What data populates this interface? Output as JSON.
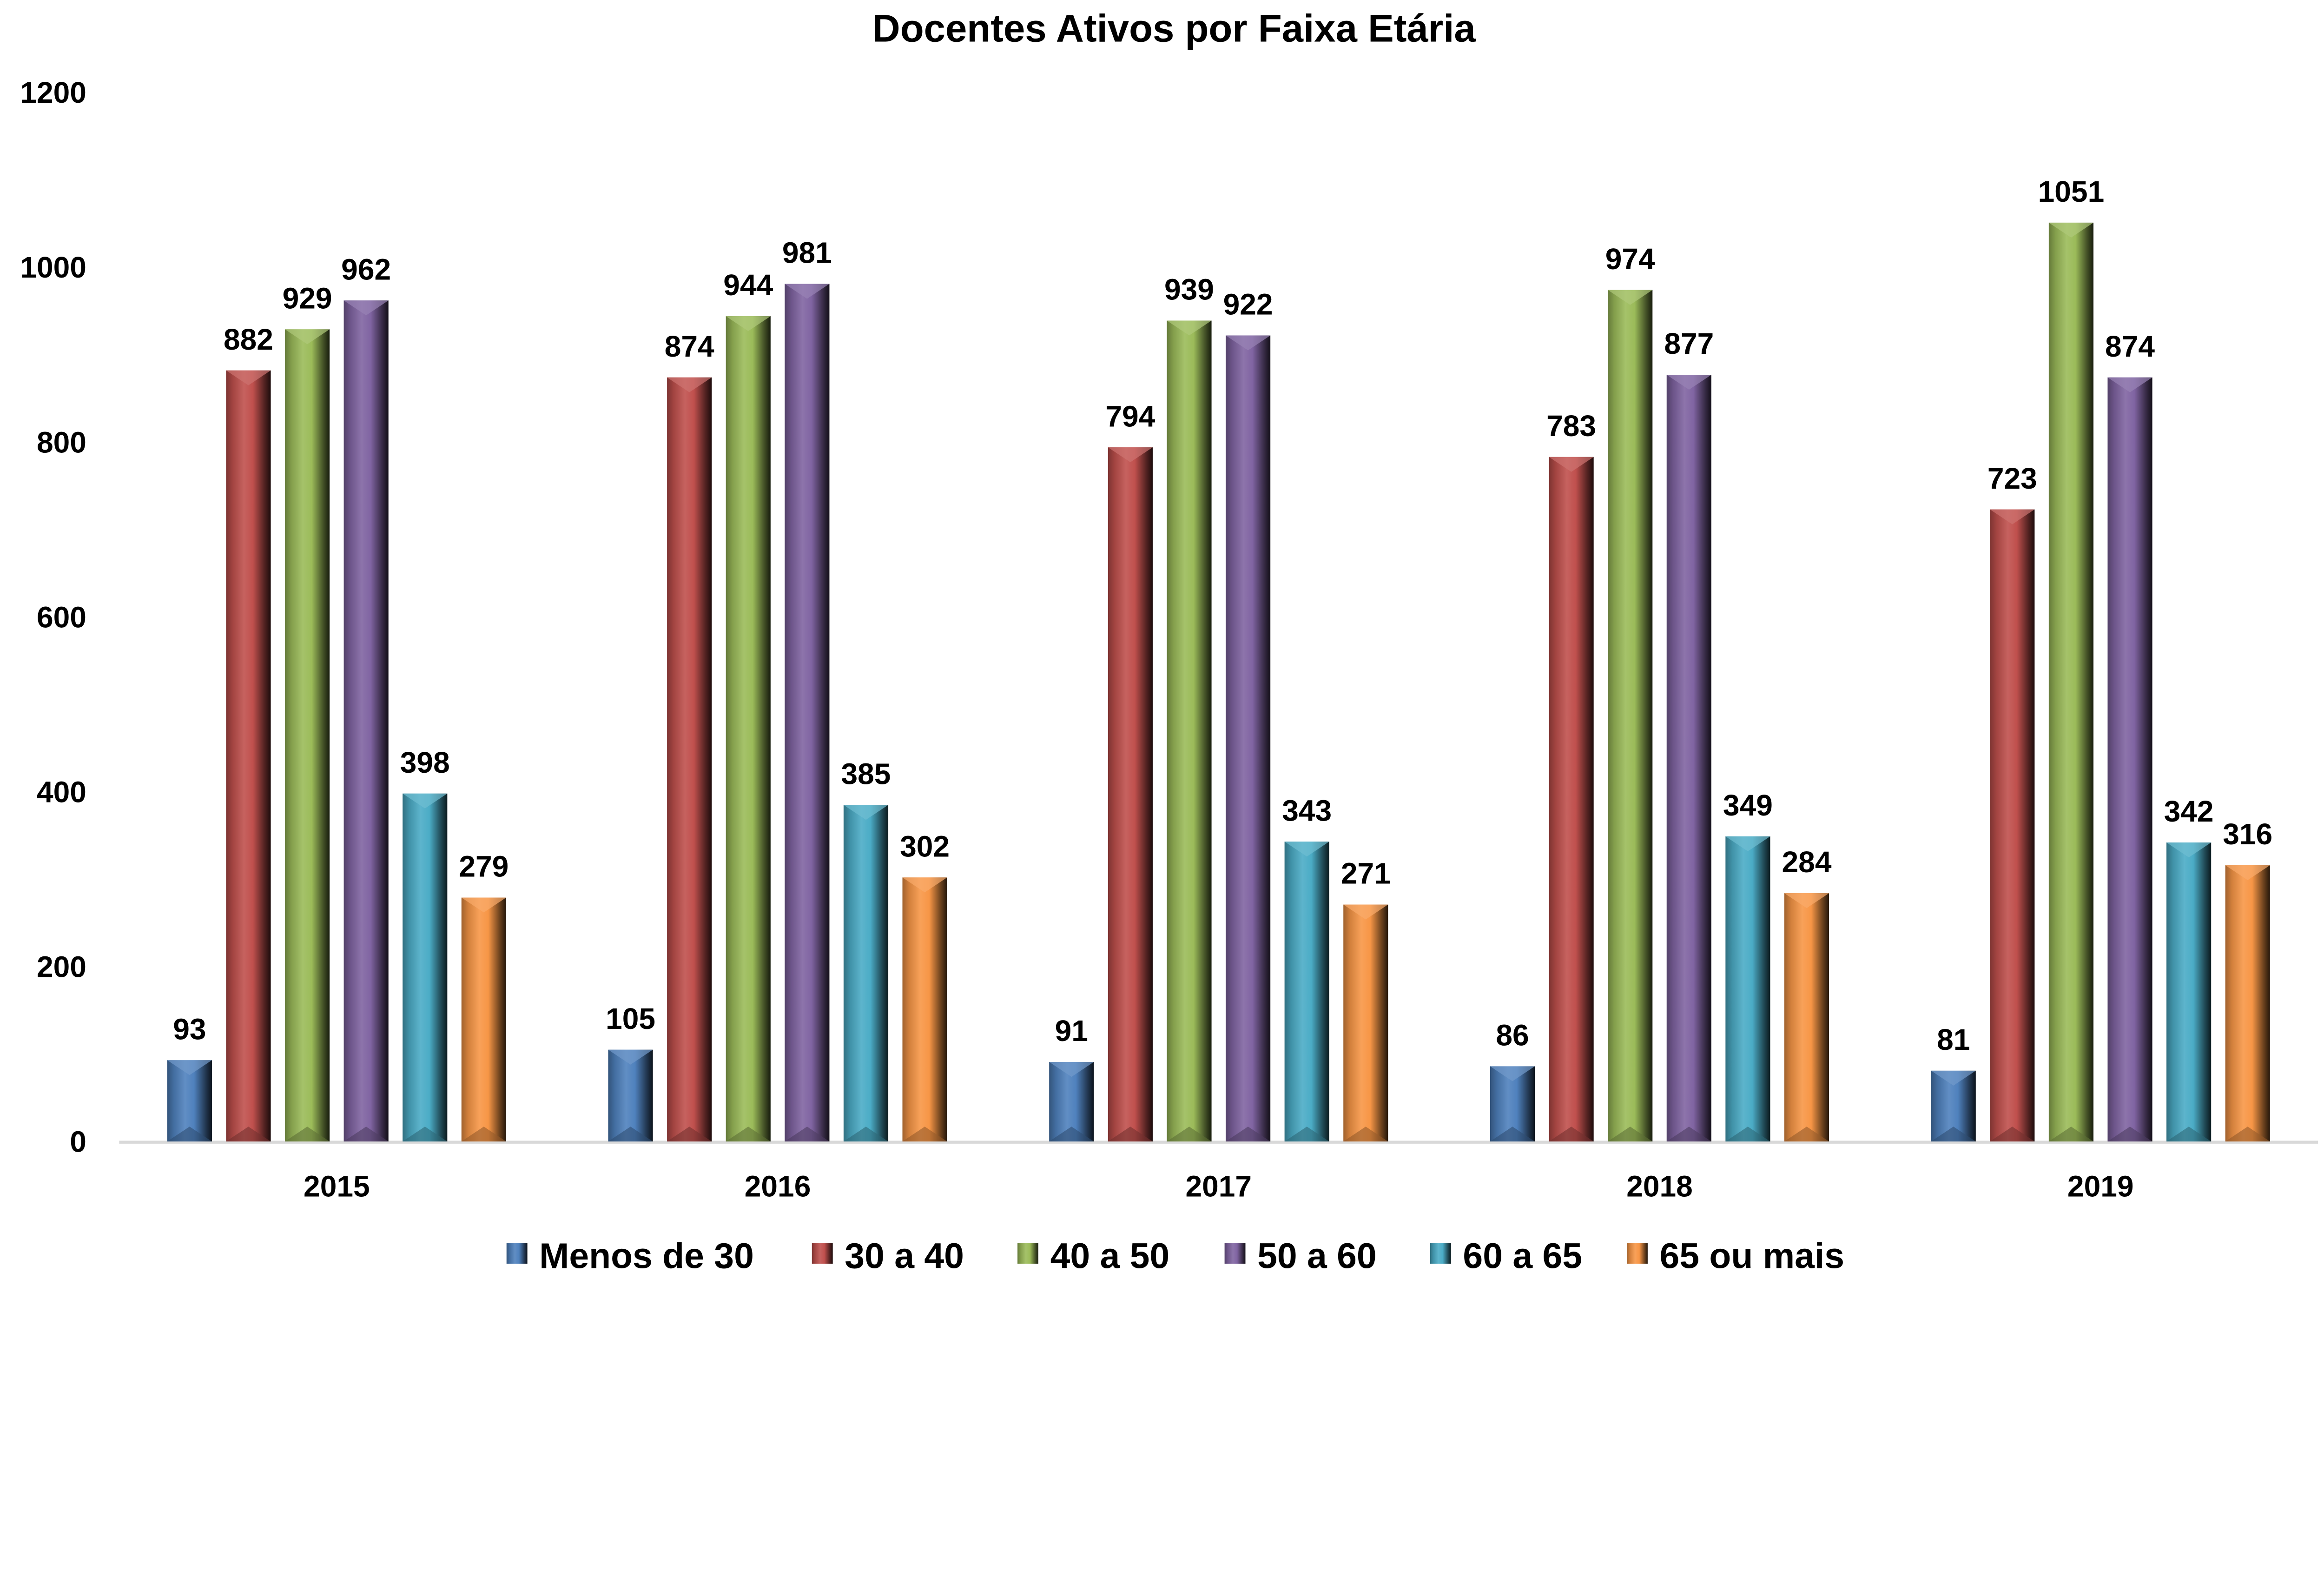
{
  "chart_data": {
    "type": "bar",
    "title": "Docentes Ativos por Faixa Etária",
    "xlabel": "",
    "ylabel": "",
    "ylim": [
      0,
      1200
    ],
    "yticks": [
      0,
      200,
      400,
      600,
      800,
      1000,
      1200
    ],
    "grid": false,
    "legend_position": "bottom",
    "categories": [
      "2015",
      "2016",
      "2017",
      "2018",
      "2019"
    ],
    "series": [
      {
        "name": "Menos de 30",
        "color": "#4f81bd",
        "values": [
          93,
          105,
          91,
          86,
          81
        ]
      },
      {
        "name": "30 a 40",
        "color": "#c0504d",
        "values": [
          882,
          874,
          794,
          783,
          723
        ]
      },
      {
        "name": "40 a 50",
        "color": "#9bbb59",
        "values": [
          929,
          944,
          939,
          974,
          1051
        ]
      },
      {
        "name": "50 a 60",
        "color": "#8064a2",
        "values": [
          962,
          981,
          922,
          877,
          874
        ]
      },
      {
        "name": "60 a 65",
        "color": "#4bacc6",
        "values": [
          398,
          385,
          343,
          349,
          342
        ]
      },
      {
        "name": "65 ou mais",
        "color": "#f79646",
        "values": [
          279,
          302,
          271,
          284,
          316
        ]
      }
    ]
  }
}
